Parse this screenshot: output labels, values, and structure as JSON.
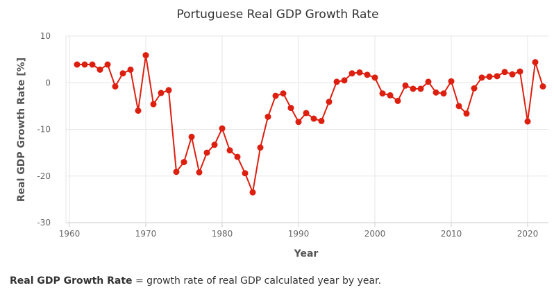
{
  "caption": {
    "term": "Real GDP Growth Rate",
    "definition": " = growth rate of real GDP calculated year by year."
  },
  "colors": {
    "series": "#dd1f10",
    "grid": "#e6e6e6",
    "axis": "#cccccc"
  },
  "chart_data": {
    "type": "line",
    "title": "Portuguese Real GDP Growth Rate",
    "xlabel": "Year",
    "ylabel": "Real GDP Growth Rate [%]",
    "xlim": [
      1960,
      2022
    ],
    "ylim": [
      -30,
      10
    ],
    "xticks": [
      1960,
      1970,
      1980,
      1990,
      2000,
      2010,
      2020
    ],
    "yticks": [
      10,
      0,
      -10,
      -20,
      -30
    ],
    "grid": true,
    "legend": "none",
    "series": [
      {
        "x": [
          1961,
          1962,
          1963,
          1964,
          1965,
          1966,
          1967,
          1968,
          1969,
          1970,
          1971,
          1972,
          1973,
          1974,
          1975,
          1976,
          1977,
          1978,
          1979,
          1980,
          1981,
          1982,
          1983,
          1984,
          1985,
          1986,
          1987,
          1988,
          1989,
          1990,
          1991,
          1992,
          1993,
          1994,
          1995,
          1996,
          1997,
          1998,
          1999,
          2000,
          2001,
          2002,
          2003,
          2004,
          2005,
          2006,
          2007,
          2008,
          2009,
          2010,
          2011,
          2012,
          2013,
          2014,
          2015,
          2016,
          2017,
          2018,
          2019,
          2020,
          2021,
          2022
        ],
        "values": [
          3.9,
          3.9,
          3.9,
          2.8,
          3.9,
          -0.8,
          2.0,
          2.8,
          -6.0,
          5.9,
          -4.6,
          -2.2,
          -1.6,
          -19.1,
          -17.0,
          -11.6,
          -19.2,
          -15.0,
          -13.3,
          -9.8,
          -14.5,
          -15.9,
          -19.4,
          -23.5,
          -13.9,
          -7.3,
          -2.8,
          -2.3,
          -5.4,
          -8.4,
          -6.5,
          -7.7,
          -8.2,
          -4.1,
          0.2,
          0.5,
          2.0,
          2.2,
          1.7,
          1.1,
          -2.3,
          -2.7,
          -3.9,
          -0.6,
          -1.3,
          -1.3,
          0.2,
          -2.1,
          -2.3,
          0.3,
          -5.0,
          -6.6,
          -1.2,
          1.1,
          1.3,
          1.4,
          2.3,
          1.8,
          2.4,
          -8.3,
          4.4,
          -0.8
        ]
      }
    ]
  }
}
